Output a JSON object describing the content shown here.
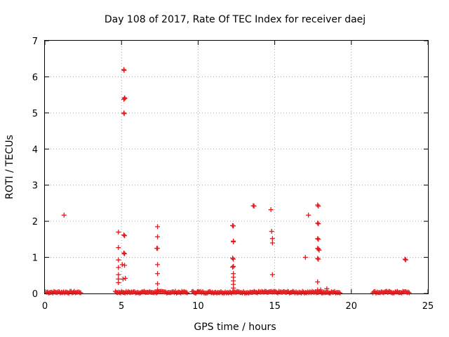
{
  "chart_data": {
    "type": "scatter",
    "title": "Day 108 of 2017, Rate Of TEC Index for receiver daej",
    "xlabel": "GPS time / hours",
    "ylabel": "ROTI / TECUs",
    "xlim": [
      0,
      25
    ],
    "ylim": [
      0,
      7
    ],
    "xticks": [
      0,
      5,
      10,
      15,
      20,
      25
    ],
    "yticks": [
      0,
      1,
      2,
      3,
      4,
      5,
      6,
      7
    ],
    "grid": true,
    "legend": "none",
    "marker": "+",
    "color": "#e41a1c",
    "baseline_segments": [
      [
        0.1,
        2.35
      ],
      [
        4.6,
        9.3
      ],
      [
        9.6,
        19.3
      ],
      [
        21.4,
        23.8
      ]
    ],
    "points": [
      [
        1.25,
        2.17
      ],
      [
        4.8,
        1.7
      ],
      [
        4.8,
        1.27
      ],
      [
        4.8,
        0.93
      ],
      [
        4.8,
        0.72
      ],
      [
        4.8,
        0.52
      ],
      [
        4.8,
        0.4
      ],
      [
        4.8,
        0.3
      ],
      [
        5.05,
        0.8
      ],
      [
        5.1,
        0.4
      ],
      [
        5.15,
        6.2
      ],
      [
        5.17,
        6.18
      ],
      [
        5.2,
        5.42
      ],
      [
        5.15,
        5.38
      ],
      [
        5.22,
        5.4
      ],
      [
        5.15,
        5.0
      ],
      [
        5.18,
        4.98
      ],
      [
        5.15,
        1.62
      ],
      [
        5.2,
        1.6
      ],
      [
        5.15,
        1.12
      ],
      [
        5.2,
        1.1
      ],
      [
        5.2,
        0.78
      ],
      [
        5.25,
        0.42
      ],
      [
        7.35,
        1.85
      ],
      [
        7.35,
        1.57
      ],
      [
        7.3,
        1.25
      ],
      [
        7.35,
        1.25
      ],
      [
        7.35,
        0.8
      ],
      [
        7.35,
        0.55
      ],
      [
        7.35,
        0.27
      ],
      [
        7.35,
        0.1
      ],
      [
        12.25,
        1.88
      ],
      [
        12.3,
        1.87
      ],
      [
        12.3,
        1.45
      ],
      [
        12.3,
        1.43
      ],
      [
        12.25,
        0.98
      ],
      [
        12.3,
        0.95
      ],
      [
        12.3,
        0.75
      ],
      [
        12.25,
        0.73
      ],
      [
        12.3,
        0.55
      ],
      [
        12.3,
        0.45
      ],
      [
        12.3,
        0.35
      ],
      [
        12.3,
        0.25
      ],
      [
        12.3,
        0.15
      ],
      [
        13.6,
        2.43
      ],
      [
        13.65,
        2.42
      ],
      [
        14.75,
        2.32
      ],
      [
        14.8,
        1.72
      ],
      [
        14.85,
        1.52
      ],
      [
        14.85,
        1.4
      ],
      [
        14.85,
        0.52
      ],
      [
        17.0,
        1.0
      ],
      [
        17.2,
        2.17
      ],
      [
        17.8,
        2.45
      ],
      [
        17.85,
        2.42
      ],
      [
        17.8,
        1.95
      ],
      [
        17.85,
        1.93
      ],
      [
        17.8,
        1.52
      ],
      [
        17.85,
        1.5
      ],
      [
        17.8,
        1.25
      ],
      [
        17.85,
        1.23
      ],
      [
        17.9,
        1.2
      ],
      [
        17.8,
        0.97
      ],
      [
        17.85,
        0.95
      ],
      [
        17.8,
        0.32
      ],
      [
        17.8,
        0.1
      ],
      [
        18.0,
        0.1
      ],
      [
        18.4,
        0.13
      ],
      [
        23.5,
        0.95
      ],
      [
        23.55,
        0.93
      ]
    ]
  }
}
